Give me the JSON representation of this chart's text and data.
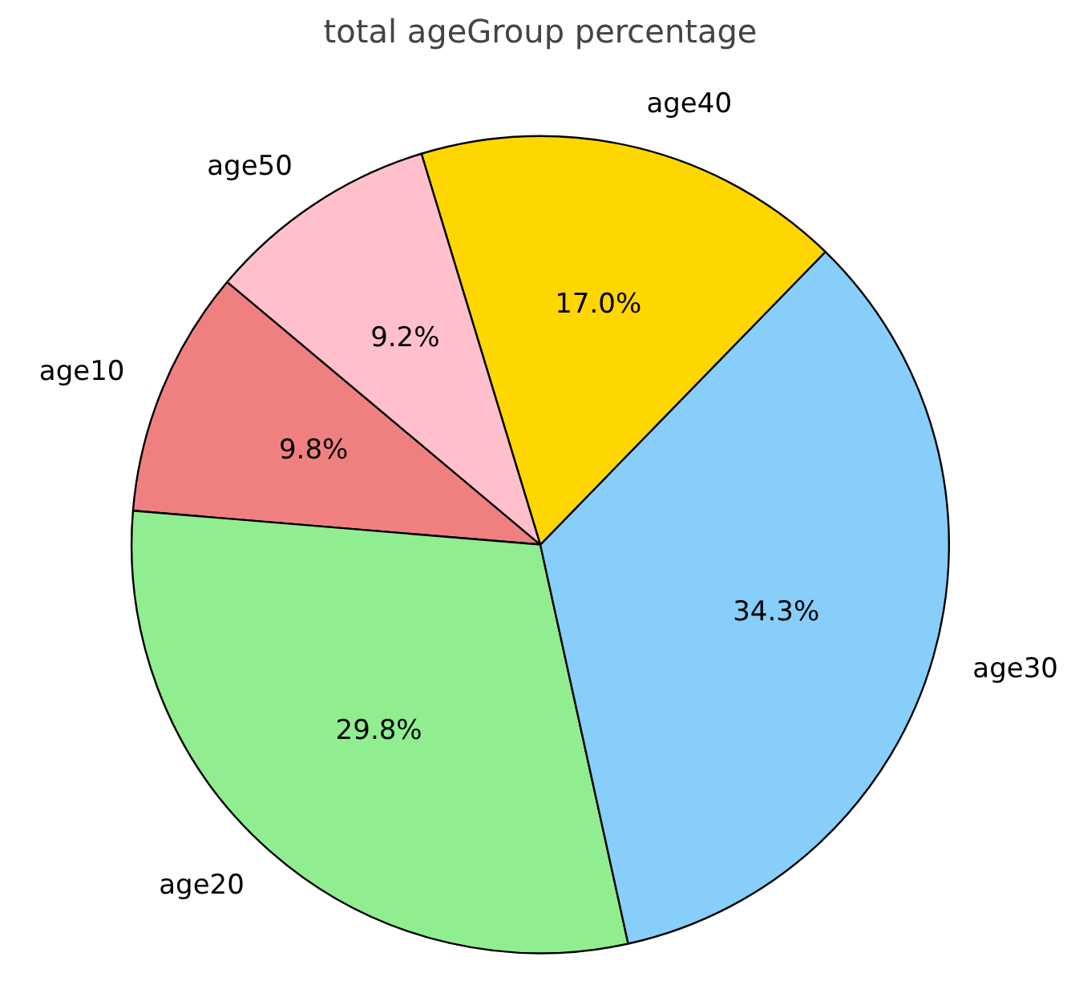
{
  "chart_data": {
    "type": "pie",
    "title": "total ageGroup percentage",
    "categories": [
      "age10",
      "age20",
      "age30",
      "age40",
      "age50"
    ],
    "values": [
      9.8,
      29.8,
      34.3,
      17.0,
      9.2
    ],
    "colors": [
      "#f08080",
      "#90ee90",
      "#87cefa",
      "#ffd700",
      "#ffc0cb"
    ],
    "value_labels": [
      "9.8%",
      "29.8%",
      "34.3%",
      "17.0%",
      "9.2%"
    ],
    "legend": false
  }
}
